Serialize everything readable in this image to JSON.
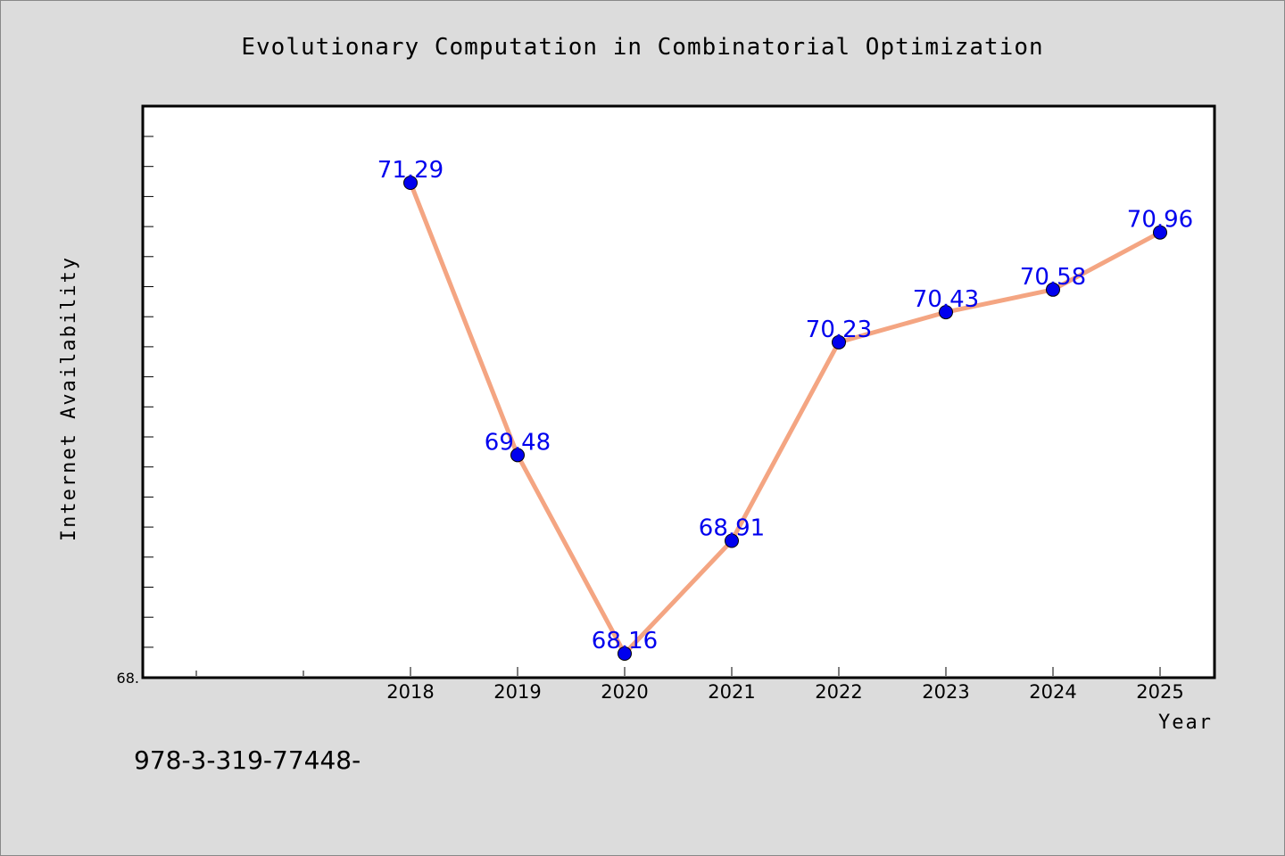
{
  "chart_data": {
    "type": "line",
    "title": "Evolutionary Computation in Combinatorial Optimization",
    "xlabel": "Year",
    "ylabel": "Internet Availability",
    "categories": [
      "2018",
      "2019",
      "2020",
      "2021",
      "2022",
      "2023",
      "2024",
      "2025"
    ],
    "series": [
      {
        "values": [
          71.29,
          69.48,
          68.16,
          68.91,
          70.23,
          70.43,
          70.58,
          70.96
        ],
        "line_color": "#f4a582",
        "marker_color": "#0000ee"
      }
    ],
    "data_labels": [
      "71.29",
      "69.48",
      "68.16",
      "68.91",
      "70.23",
      "70.43",
      "70.58",
      "70.96"
    ],
    "data_label_color": "#0000ee",
    "ytick_labels": [
      "68."
    ],
    "ylim": [
      68,
      71.8
    ],
    "grid": false,
    "legend": "none"
  },
  "footer_text": "978-3-319-77448-"
}
